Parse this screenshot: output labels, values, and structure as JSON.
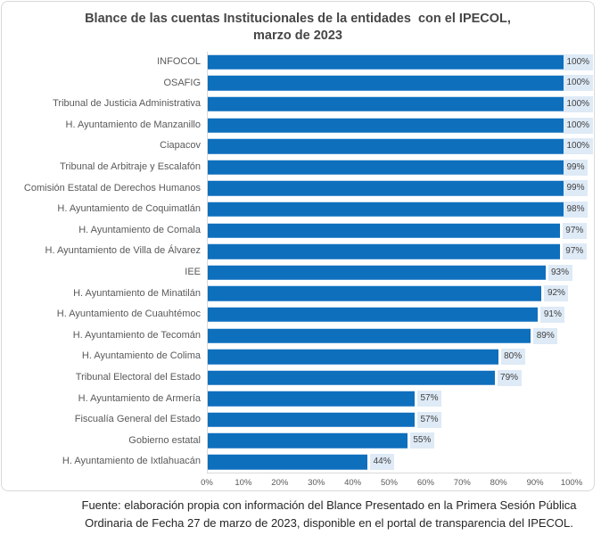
{
  "title": {
    "line1": "Blance de las cuentas Institucionales de la entidades  con el IPECOL,",
    "line2": "marzo de 2023"
  },
  "chart_data": {
    "type": "bar",
    "orientation": "horizontal",
    "title": "Blance de las cuentas Institucionales de la entidades con el IPECOL, marzo de 2023",
    "categories": [
      "INFOCOL",
      "OSAFIG",
      "Tribunal de Justicia Administrativa",
      "H. Ayuntamiento de Manzanillo",
      "Ciapacov",
      "Tribunal de Arbitraje y Escalafón",
      "Comisión Estatal de Derechos Humanos",
      "H. Ayuntamiento de Coquimatlán",
      "H. Ayuntamiento de Comala",
      "H. Ayuntamiento de Villa de Álvarez",
      "IEE",
      "H. Ayuntamiento de Minatilán",
      "H. Ayuntamiento de Cuauhtémoc",
      "H. Ayuntamiento de Tecomán",
      "H. Ayuntamiento de Colima",
      "Tribunal Electoral del Estado",
      "H. Ayuntamiento de Armería",
      "Fiscualía General del Estado",
      "Gobierno estatal",
      "H. Ayuntamiento de Ixtlahuacán"
    ],
    "values": [
      100,
      100,
      100,
      100,
      100,
      99,
      99,
      98,
      97,
      97,
      93,
      92,
      91,
      89,
      80,
      79,
      57,
      57,
      55,
      44
    ],
    "value_labels": [
      "100%",
      "100%",
      "100%",
      "100%",
      "100%",
      "99%",
      "99%",
      "98%",
      "97%",
      "97%",
      "93%",
      "92%",
      "91%",
      "89%",
      "80%",
      "79%",
      "57%",
      "57%",
      "55%",
      "44%"
    ],
    "xlabel": "",
    "ylabel": "",
    "xlim": [
      0,
      100
    ],
    "x_ticks": [
      "0%",
      "10%",
      "20%",
      "30%",
      "40%",
      "50%",
      "60%",
      "70%",
      "80%",
      "90%",
      "100%"
    ],
    "grid": false,
    "legend": false,
    "colors": {
      "bar": "#0E6FBD",
      "value_label_bg": "#DEEAF6",
      "value_label_text": "#404040",
      "category_text": "#595959",
      "tick_text": "#595959",
      "axis_line": "#D9D9D9",
      "chart_border": "#D9D9D9",
      "title_text": "#464646"
    }
  },
  "footer": {
    "line1": "Fuente: elaboración propia con información del Blance Presentado en la Primera Sesión Pública",
    "line2": "Ordinaria de Fecha 27 de marzo de 2023, disponible en el portal de transparencia del IPECOL."
  }
}
